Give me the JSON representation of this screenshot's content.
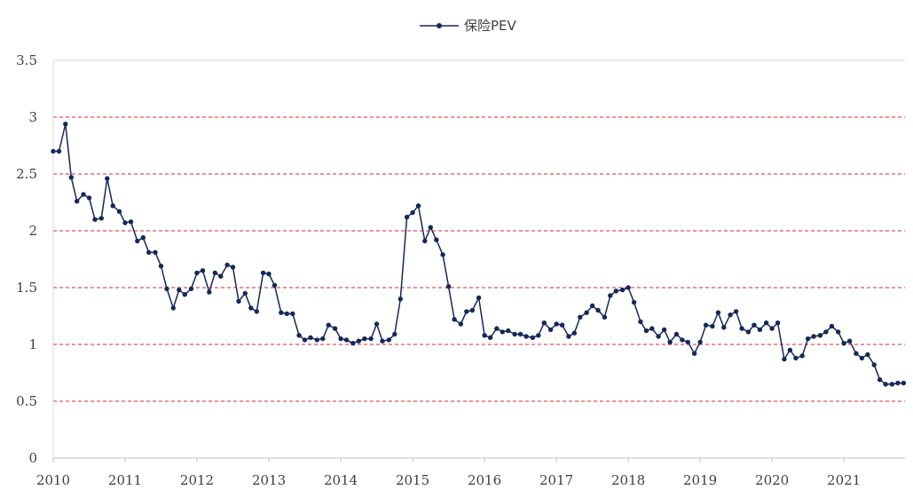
{
  "chart_data": {
    "type": "line",
    "title": "",
    "xlabel": "",
    "ylabel": "",
    "legend": {
      "position": "top-center",
      "entries": [
        "保险PEV"
      ]
    },
    "grid": {
      "horizontal": true,
      "style": "dashed",
      "color": "#e0242a"
    },
    "ylim": [
      0,
      3.5
    ],
    "y_ticks": [
      "0",
      "0.5",
      "1",
      "1.5",
      "2",
      "2.5",
      "3",
      "3.5"
    ],
    "y_tick_values": [
      0,
      0.5,
      1,
      1.5,
      2,
      2.5,
      3,
      3.5
    ],
    "xlim": [
      2010,
      2021.85
    ],
    "x_ticks": [
      "2010",
      "2011",
      "2012",
      "2013",
      "2014",
      "2015",
      "2016",
      "2017",
      "2018",
      "2019",
      "2020",
      "2021"
    ],
    "x_tick_values": [
      2010,
      2011,
      2012,
      2013,
      2014,
      2015,
      2016,
      2017,
      2018,
      2019,
      2020,
      2021
    ],
    "series": [
      {
        "name": "保险PEV",
        "color": "#14285a",
        "x": [
          2010.0,
          2010.08,
          2010.17,
          2010.25,
          2010.33,
          2010.42,
          2010.5,
          2010.58,
          2010.67,
          2010.75,
          2010.83,
          2010.92,
          2011.0,
          2011.08,
          2011.17,
          2011.25,
          2011.33,
          2011.42,
          2011.5,
          2011.58,
          2011.67,
          2011.75,
          2011.83,
          2011.92,
          2012.0,
          2012.08,
          2012.17,
          2012.25,
          2012.33,
          2012.42,
          2012.5,
          2012.58,
          2012.67,
          2012.75,
          2012.83,
          2012.92,
          2013.0,
          2013.08,
          2013.17,
          2013.25,
          2013.33,
          2013.42,
          2013.5,
          2013.58,
          2013.67,
          2013.75,
          2013.83,
          2013.92,
          2014.0,
          2014.08,
          2014.17,
          2014.25,
          2014.33,
          2014.42,
          2014.5,
          2014.58,
          2014.67,
          2014.75,
          2014.83,
          2014.92,
          2015.0,
          2015.08,
          2015.17,
          2015.25,
          2015.33,
          2015.42,
          2015.5,
          2015.58,
          2015.67,
          2015.75,
          2015.83,
          2015.92,
          2016.0,
          2016.08,
          2016.17,
          2016.25,
          2016.33,
          2016.42,
          2016.5,
          2016.58,
          2016.67,
          2016.75,
          2016.83,
          2016.92,
          2017.0,
          2017.08,
          2017.17,
          2017.25,
          2017.33,
          2017.42,
          2017.5,
          2017.58,
          2017.67,
          2017.75,
          2017.83,
          2017.92,
          2018.0,
          2018.08,
          2018.17,
          2018.25,
          2018.33,
          2018.42,
          2018.5,
          2018.58,
          2018.67,
          2018.75,
          2018.83,
          2018.92,
          2019.0,
          2019.08,
          2019.17,
          2019.25,
          2019.33,
          2019.42,
          2019.5,
          2019.58,
          2019.67,
          2019.75,
          2019.83,
          2019.92,
          2020.0,
          2020.08,
          2020.17,
          2020.25,
          2020.33,
          2020.42,
          2020.5,
          2020.58,
          2020.67,
          2020.75,
          2020.83,
          2020.92,
          2021.0,
          2021.08,
          2021.17,
          2021.25,
          2021.33,
          2021.42,
          2021.5,
          2021.58,
          2021.67,
          2021.75,
          2021.83
        ],
        "values": [
          2.7,
          2.7,
          2.94,
          2.47,
          2.26,
          2.32,
          2.29,
          2.1,
          2.11,
          2.46,
          2.22,
          2.17,
          2.07,
          2.08,
          1.91,
          1.94,
          1.81,
          1.81,
          1.69,
          1.49,
          1.32,
          1.48,
          1.44,
          1.49,
          1.63,
          1.65,
          1.46,
          1.63,
          1.6,
          1.7,
          1.68,
          1.38,
          1.45,
          1.32,
          1.29,
          1.63,
          1.62,
          1.52,
          1.28,
          1.27,
          1.27,
          1.08,
          1.04,
          1.06,
          1.04,
          1.05,
          1.17,
          1.14,
          1.05,
          1.04,
          1.01,
          1.03,
          1.05,
          1.05,
          1.18,
          1.03,
          1.04,
          1.09,
          1.4,
          2.12,
          2.16,
          2.22,
          1.91,
          2.03,
          1.92,
          1.79,
          1.51,
          1.22,
          1.18,
          1.29,
          1.3,
          1.41,
          1.08,
          1.06,
          1.14,
          1.11,
          1.12,
          1.09,
          1.09,
          1.07,
          1.06,
          1.08,
          1.19,
          1.13,
          1.18,
          1.17,
          1.07,
          1.1,
          1.24,
          1.28,
          1.34,
          1.3,
          1.24,
          1.43,
          1.47,
          1.48,
          1.5,
          1.37,
          1.2,
          1.12,
          1.14,
          1.07,
          1.13,
          1.02,
          1.09,
          1.04,
          1.02,
          0.92,
          1.02,
          1.17,
          1.16,
          1.28,
          1.15,
          1.26,
          1.29,
          1.14,
          1.11,
          1.17,
          1.13,
          1.19,
          1.14,
          1.19,
          0.87,
          0.95,
          0.88,
          0.9,
          1.05,
          1.07,
          1.08,
          1.11,
          1.16,
          1.11,
          1.01,
          1.03,
          0.92,
          0.88,
          0.91,
          0.82,
          0.69,
          0.65,
          0.65,
          0.66,
          0.66
        ]
      }
    ]
  }
}
